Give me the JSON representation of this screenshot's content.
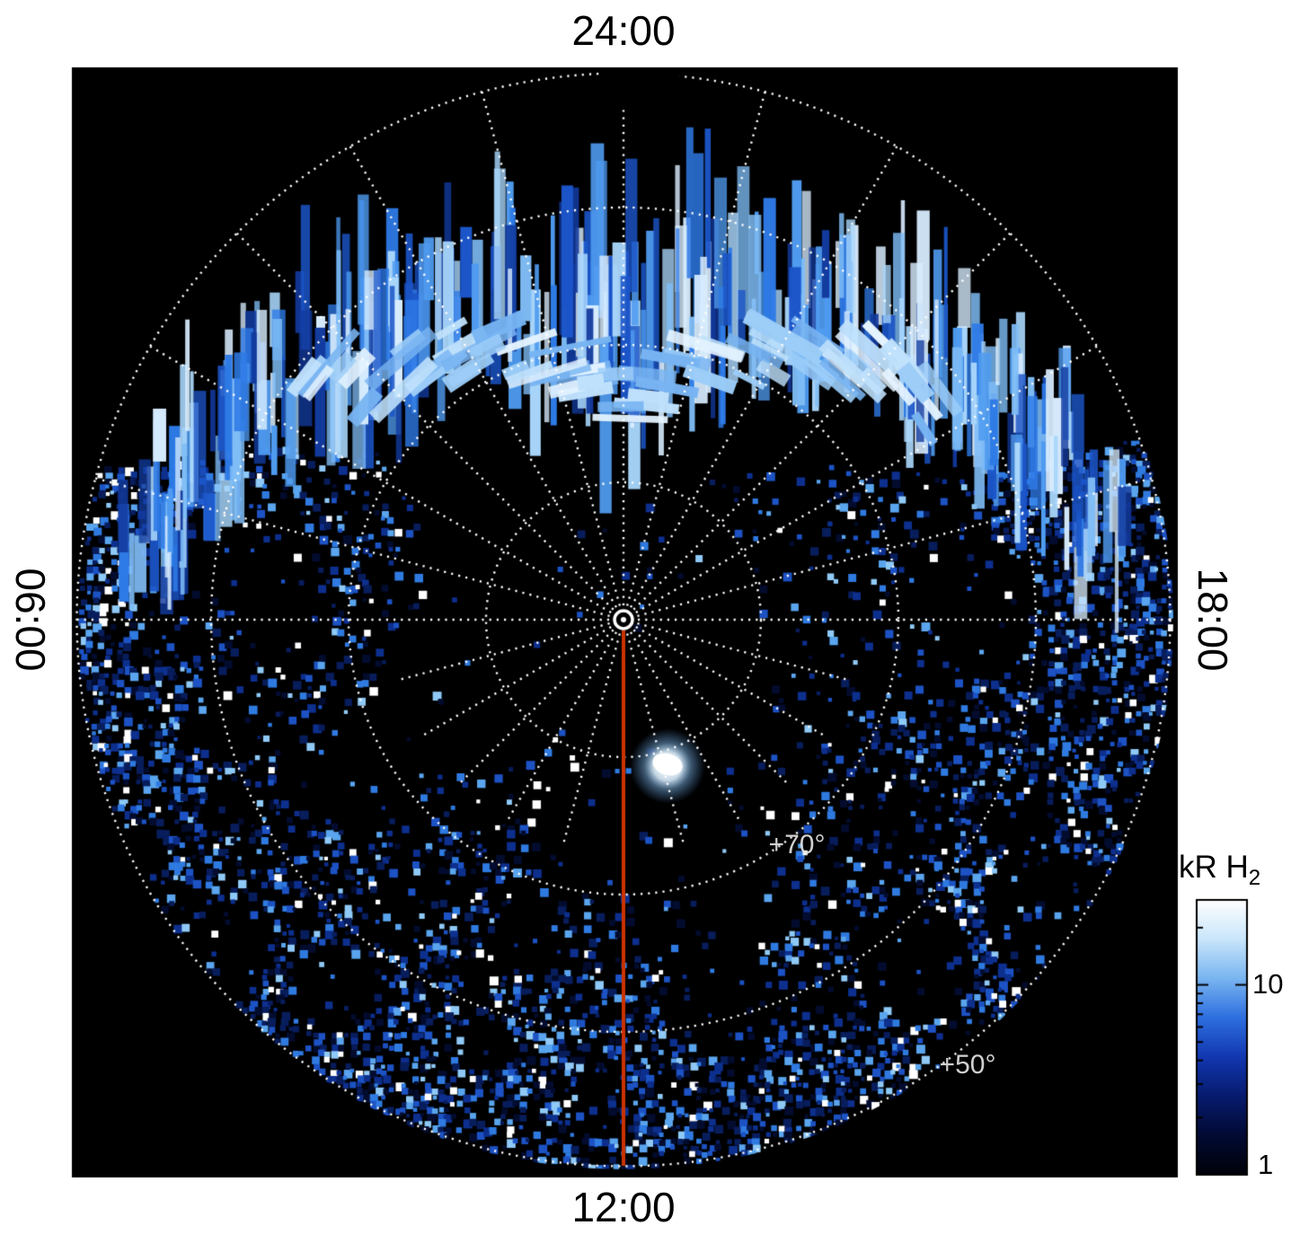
{
  "page": {
    "background": "#ffffff"
  },
  "plot": {
    "background": "#000000",
    "grid_color": "#ffffff",
    "grid_style": "dotted"
  },
  "chart_data": {
    "type": "heatmap",
    "projection": "polar",
    "description": "Polar map of H2 auroral brightness versus magnetic local time and magnetic latitude; pole at center, midnight (24:00) at top, noon (12:00) at bottom.",
    "mlt_axis": {
      "top": {
        "label": "24:00"
      },
      "left": {
        "label": "06:00"
      },
      "bottom": {
        "label": "12:00"
      },
      "right": {
        "label": "18:00"
      }
    },
    "latitude_grid": {
      "pole_deg": 90,
      "outer_edge_deg": 50,
      "ring_interval_deg": 10,
      "rings_deg": [
        80,
        70,
        60,
        50
      ],
      "labels": [
        {
          "text": "+70°",
          "ring_deg": 70
        },
        {
          "text": "+50°",
          "ring_deg": 50
        }
      ]
    },
    "spokes": {
      "count": 24,
      "interval_deg": 15
    },
    "colorbar": {
      "label_main": "kR H",
      "label_sub": "2",
      "scale": "log",
      "min": 1,
      "max": 28,
      "tick_values": [
        10,
        1
      ],
      "tick_labels": [
        "10",
        "1"
      ],
      "minor_tick_values": [
        2,
        3,
        4,
        5,
        6,
        7,
        8,
        9,
        20
      ],
      "gradient_top_to_bottom": [
        "#ffffff",
        "#c9e6fb",
        "#79b5f0",
        "#2e6fe0",
        "#1237b0",
        "#071b6e",
        "#020a33",
        "#000208"
      ]
    },
    "features": {
      "noon_meridian": {
        "mlt": "12:00",
        "color": "#cc3300"
      },
      "pole_marker": {
        "shape": "open-circle",
        "color": "#ffffff"
      },
      "auroral_band": {
        "mlt_center": "24:00",
        "latitude_range_deg": [
          55,
          77
        ],
        "appearance": "patchy vertical streaks of 5-30 kR emission around the nightside"
      },
      "background_field": {
        "appearance": "speckled 1-10 kR background emission over the dayside and low latitudes"
      },
      "bright_spot": {
        "approx_latitude_deg": 79,
        "approx_mlt": "13:00"
      }
    },
    "palette": {
      "speckle_colors": [
        "#030c2e",
        "#081d5c",
        "#0d2f8e",
        "#1c52c4",
        "#2f7ae0",
        "#5aa5ee",
        "#8fc9f6",
        "#ffffff"
      ],
      "streak_colors": [
        "#123a9e",
        "#1b55c8",
        "#2e7ae6",
        "#4f9bf0",
        "#7fbdf6",
        "#a9d6fb",
        "#d7ecfe"
      ],
      "arc_colors": [
        "#9ccdf8",
        "#bfe1fc",
        "#e4f3ff",
        "#78b4f2"
      ]
    }
  }
}
